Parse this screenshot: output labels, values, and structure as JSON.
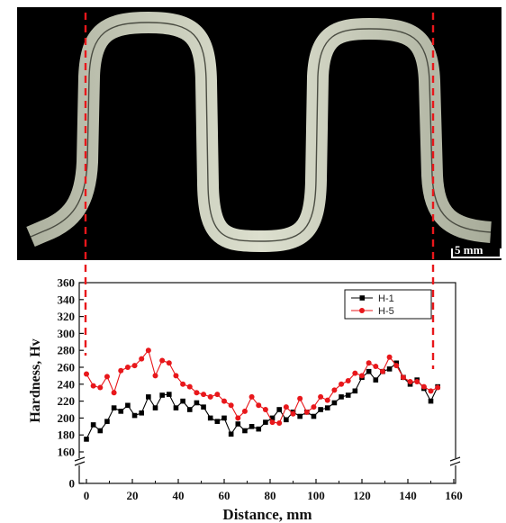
{
  "scale_bar_label": "5 mm",
  "chart_data": {
    "type": "line",
    "xlabel": "Distance, mm",
    "ylabel": "Hardness, Hv",
    "xlim": [
      0,
      160
    ],
    "ylim": [
      0,
      360
    ],
    "x_ticks": [
      0,
      20,
      40,
      60,
      80,
      100,
      120,
      140,
      160
    ],
    "y_ticks": [
      0,
      160,
      180,
      200,
      220,
      240,
      260,
      280,
      300,
      320,
      340,
      360
    ],
    "axis_break": "between 0 and 160 on the y axis and near 155 on the x axis",
    "legend_position": "top-right",
    "colors": {
      "H-1": "#000000",
      "H-5": "#e8171b",
      "guide_lines": "#e8171b"
    },
    "series": [
      {
        "name": "H-1",
        "marker": "square",
        "x": [
          0,
          3,
          6,
          9,
          12,
          15,
          18,
          21,
          24,
          27,
          30,
          33,
          36,
          39,
          42,
          45,
          48,
          51,
          54,
          57,
          60,
          63,
          66,
          69,
          72,
          75,
          78,
          81,
          84,
          87,
          90,
          93,
          96,
          99,
          102,
          105,
          108,
          111,
          114,
          117,
          120,
          123,
          126,
          129,
          132,
          135,
          138,
          141,
          144,
          147,
          150,
          153
        ],
        "y": [
          175,
          192,
          185,
          196,
          212,
          208,
          215,
          203,
          206,
          225,
          212,
          227,
          228,
          212,
          220,
          210,
          218,
          213,
          200,
          196,
          200,
          181,
          193,
          185,
          190,
          187,
          195,
          200,
          210,
          198,
          207,
          202,
          207,
          202,
          210,
          212,
          218,
          225,
          227,
          232,
          248,
          255,
          245,
          255,
          258,
          265,
          248,
          240,
          245,
          235,
          220,
          237
        ]
      },
      {
        "name": "H-5",
        "marker": "circle",
        "x": [
          0,
          3,
          6,
          9,
          12,
          15,
          18,
          21,
          24,
          27,
          30,
          33,
          36,
          39,
          42,
          45,
          48,
          51,
          54,
          57,
          60,
          63,
          66,
          69,
          72,
          75,
          78,
          81,
          84,
          87,
          90,
          93,
          96,
          99,
          102,
          105,
          108,
          111,
          114,
          117,
          120,
          123,
          126,
          129,
          132,
          135,
          138,
          141,
          144,
          147,
          150,
          153
        ],
        "y": [
          252,
          238,
          236,
          249,
          230,
          256,
          260,
          262,
          270,
          280,
          250,
          268,
          265,
          250,
          240,
          237,
          230,
          228,
          225,
          228,
          220,
          215,
          200,
          208,
          225,
          215,
          210,
          195,
          194,
          213,
          205,
          223,
          207,
          213,
          225,
          221,
          233,
          240,
          244,
          253,
          250,
          265,
          261,
          255,
          272,
          262,
          248,
          243,
          243,
          237,
          232,
          236
        ]
      }
    ]
  }
}
